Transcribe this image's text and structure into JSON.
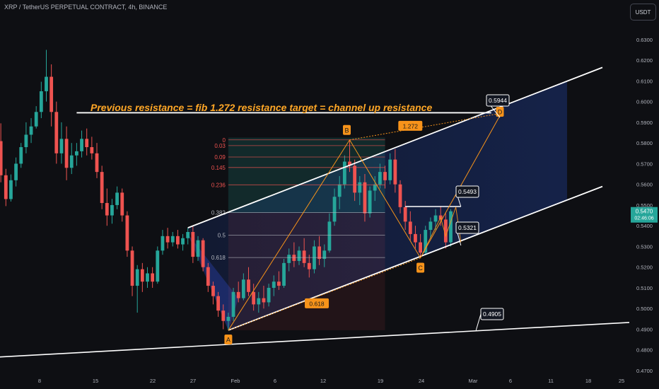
{
  "header": {
    "title": "XRP / TetherUS PERPETUAL CONTRACT, 4h, BINANCE",
    "currency_button": "USDT"
  },
  "colors": {
    "background": "#0e0f13",
    "up_candle": "#26a69a",
    "down_candle": "#ef5350",
    "annotation_orange": "#f7931a",
    "headline_orange": "#ffa726",
    "channel_line": "#ffffff",
    "channel_fill": "#1e3a8a",
    "fib_line": "#ef5350",
    "price_label_bg": "#26a69a"
  },
  "chart_data": {
    "type": "candlestick",
    "symbol": "XRP / TetherUS PERPETUAL CONTRACT",
    "interval": "4h",
    "exchange": "BINANCE",
    "ylim": [
      0.47,
      0.645
    ],
    "x_axis_ticks": [
      "8",
      "15",
      "22",
      "27",
      "Feb",
      "6",
      "12",
      "19",
      "24",
      "Mar",
      "6",
      "11",
      "18",
      "25"
    ],
    "y_axis_ticks": [
      "0.6400",
      "0.6300",
      "0.6200",
      "0.6100",
      "0.6000",
      "0.5900",
      "0.5800",
      "0.5700",
      "0.5600",
      "0.5500",
      "0.5400",
      "0.5300",
      "0.5200",
      "0.5100",
      "0.5000",
      "0.4900",
      "0.4800",
      "0.4700"
    ],
    "current_price": {
      "value": "0.5470",
      "countdown": "02:46:06"
    },
    "headline": "Previous resistance = fib 1.272 resistance target = channel up resistance",
    "price_levels": [
      {
        "name": "resistance-target",
        "value": 0.5944,
        "label": "0.5944"
      },
      {
        "name": "local-high",
        "value": 0.5493,
        "label": "0.5493"
      },
      {
        "name": "channel-support",
        "value": 0.5321,
        "label": "0.5321"
      },
      {
        "name": "long-trendline",
        "value": 0.4905,
        "label": "0.4905"
      }
    ],
    "fib_levels": [
      {
        "label": "0",
        "ratio": 0
      },
      {
        "label": "0.03",
        "ratio": 0.03
      },
      {
        "label": "0.09",
        "ratio": 0.09
      },
      {
        "label": "0.145",
        "ratio": 0.145
      },
      {
        "label": "0.236",
        "ratio": 0.236
      },
      {
        "label": "0.382",
        "ratio": 0.382
      },
      {
        "label": "0.5",
        "ratio": 0.5
      },
      {
        "label": "0.618",
        "ratio": 0.618
      }
    ],
    "pattern_points": [
      {
        "label": "A",
        "date_index": 46,
        "price": 0.4895
      },
      {
        "label": "B",
        "date_index": 70,
        "price": 0.5815
      },
      {
        "label": "C",
        "date_index": 84,
        "price": 0.5245
      },
      {
        "label": "D",
        "date_index": 100,
        "price": 0.5944
      }
    ],
    "pattern_ratios": [
      {
        "label": "0.618",
        "segment": "A-C"
      },
      {
        "label": "1.272",
        "segment": "B-D"
      }
    ],
    "channel": {
      "upper": [
        {
          "date_index": 38,
          "price": 0.539
        },
        {
          "date_index": 120,
          "price": 0.6165
        }
      ],
      "lower": [
        {
          "date_index": 46,
          "price": 0.4895
        },
        {
          "date_index": 120,
          "price": 0.559
        }
      ]
    },
    "long_trendline": [
      {
        "date_index": 0,
        "price": 0.4765
      },
      {
        "date_index": 127,
        "price": 0.4935
      }
    ],
    "resistance_line": {
      "price": 0.5946,
      "from_index": 16,
      "to_index": 98
    },
    "candles": [
      [
        0.57,
        0.5868,
        0.5666,
        0.5809
      ],
      [
        0.5809,
        0.5895,
        0.561,
        0.5644
      ],
      [
        0.5644,
        0.5675,
        0.5495,
        0.5529
      ],
      [
        0.5529,
        0.5648,
        0.5517,
        0.562
      ],
      [
        0.562,
        0.573,
        0.559,
        0.57
      ],
      [
        0.57,
        0.58,
        0.568,
        0.578
      ],
      [
        0.578,
        0.59,
        0.575,
        0.584
      ],
      [
        0.584,
        0.592,
        0.58,
        0.588
      ],
      [
        0.588,
        0.5978,
        0.587,
        0.595
      ],
      [
        0.595,
        0.6096,
        0.592,
        0.605
      ],
      [
        0.605,
        0.625,
        0.6,
        0.612
      ],
      [
        0.612,
        0.618,
        0.588,
        0.595
      ],
      [
        0.595,
        0.6,
        0.57,
        0.575
      ],
      [
        0.575,
        0.59,
        0.57,
        0.582
      ],
      [
        0.582,
        0.588,
        0.562,
        0.568
      ],
      [
        0.568,
        0.58,
        0.565,
        0.574
      ],
      [
        0.574,
        0.58,
        0.569,
        0.576
      ],
      [
        0.576,
        0.586,
        0.573,
        0.582
      ],
      [
        0.582,
        0.587,
        0.574,
        0.578
      ],
      [
        0.578,
        0.583,
        0.572,
        0.575
      ],
      [
        0.575,
        0.58,
        0.563,
        0.566
      ],
      [
        0.566,
        0.569,
        0.548,
        0.551
      ],
      [
        0.551,
        0.558,
        0.54,
        0.545
      ],
      [
        0.545,
        0.553,
        0.541,
        0.55
      ],
      [
        0.55,
        0.559,
        0.548,
        0.556
      ],
      [
        0.556,
        0.558,
        0.542,
        0.545
      ],
      [
        0.545,
        0.547,
        0.525,
        0.528
      ],
      [
        0.528,
        0.53,
        0.506,
        0.511
      ],
      [
        0.511,
        0.521,
        0.498,
        0.519
      ],
      [
        0.519,
        0.522,
        0.508,
        0.513
      ],
      [
        0.513,
        0.52,
        0.51,
        0.517
      ],
      [
        0.517,
        0.52,
        0.51,
        0.513
      ],
      [
        0.513,
        0.53,
        0.512,
        0.528
      ],
      [
        0.528,
        0.538,
        0.526,
        0.535
      ],
      [
        0.535,
        0.539,
        0.529,
        0.532
      ],
      [
        0.532,
        0.537,
        0.53,
        0.535
      ],
      [
        0.535,
        0.538,
        0.529,
        0.531
      ],
      [
        0.531,
        0.536,
        0.528,
        0.534
      ],
      [
        0.534,
        0.539,
        0.531,
        0.537
      ],
      [
        0.537,
        0.54,
        0.522,
        0.525
      ],
      [
        0.525,
        0.535,
        0.523,
        0.533
      ],
      [
        0.533,
        0.534,
        0.518,
        0.52
      ],
      [
        0.52,
        0.522,
        0.508,
        0.511
      ],
      [
        0.511,
        0.513,
        0.502,
        0.506
      ],
      [
        0.506,
        0.508,
        0.496,
        0.499
      ],
      [
        0.499,
        0.502,
        0.49,
        0.494
      ],
      [
        0.494,
        0.498,
        0.4895,
        0.496
      ],
      [
        0.496,
        0.51,
        0.494,
        0.508
      ],
      [
        0.508,
        0.513,
        0.503,
        0.505
      ],
      [
        0.505,
        0.517,
        0.504,
        0.514
      ],
      [
        0.514,
        0.52,
        0.506,
        0.508
      ],
      [
        0.508,
        0.512,
        0.499,
        0.502
      ],
      [
        0.502,
        0.508,
        0.498,
        0.505
      ],
      [
        0.505,
        0.511,
        0.5,
        0.503
      ],
      [
        0.503,
        0.512,
        0.501,
        0.51
      ],
      [
        0.51,
        0.516,
        0.506,
        0.513
      ],
      [
        0.513,
        0.518,
        0.509,
        0.511
      ],
      [
        0.511,
        0.524,
        0.51,
        0.522
      ],
      [
        0.522,
        0.529,
        0.518,
        0.526
      ],
      [
        0.526,
        0.532,
        0.52,
        0.523
      ],
      [
        0.523,
        0.53,
        0.521,
        0.528
      ],
      [
        0.528,
        0.534,
        0.52,
        0.522
      ],
      [
        0.522,
        0.526,
        0.515,
        0.519
      ],
      [
        0.519,
        0.533,
        0.517,
        0.53
      ],
      [
        0.53,
        0.535,
        0.521,
        0.524
      ],
      [
        0.524,
        0.531,
        0.52,
        0.528
      ],
      [
        0.528,
        0.546,
        0.527,
        0.542
      ],
      [
        0.542,
        0.558,
        0.54,
        0.554
      ],
      [
        0.554,
        0.564,
        0.548,
        0.56
      ],
      [
        0.56,
        0.574,
        0.558,
        0.571
      ],
      [
        0.571,
        0.5815,
        0.566,
        0.569
      ],
      [
        0.569,
        0.572,
        0.552,
        0.556
      ],
      [
        0.556,
        0.564,
        0.55,
        0.561
      ],
      [
        0.561,
        0.565,
        0.542,
        0.546
      ],
      [
        0.546,
        0.559,
        0.544,
        0.557
      ],
      [
        0.557,
        0.564,
        0.552,
        0.56
      ],
      [
        0.56,
        0.57,
        0.558,
        0.566
      ],
      [
        0.566,
        0.569,
        0.558,
        0.562
      ],
      [
        0.562,
        0.575,
        0.56,
        0.572
      ],
      [
        0.572,
        0.577,
        0.556,
        0.56
      ],
      [
        0.56,
        0.562,
        0.546,
        0.549
      ],
      [
        0.549,
        0.552,
        0.538,
        0.542
      ],
      [
        0.542,
        0.547,
        0.533,
        0.536
      ],
      [
        0.536,
        0.54,
        0.529,
        0.532
      ],
      [
        0.532,
        0.536,
        0.5245,
        0.527
      ],
      [
        0.527,
        0.54,
        0.526,
        0.538
      ],
      [
        0.538,
        0.544,
        0.534,
        0.542
      ],
      [
        0.542,
        0.548,
        0.538,
        0.545
      ],
      [
        0.545,
        0.5493,
        0.54,
        0.543
      ],
      [
        0.543,
        0.546,
        0.529,
        0.532
      ],
      [
        0.532,
        0.548,
        0.53,
        0.547
      ]
    ]
  }
}
